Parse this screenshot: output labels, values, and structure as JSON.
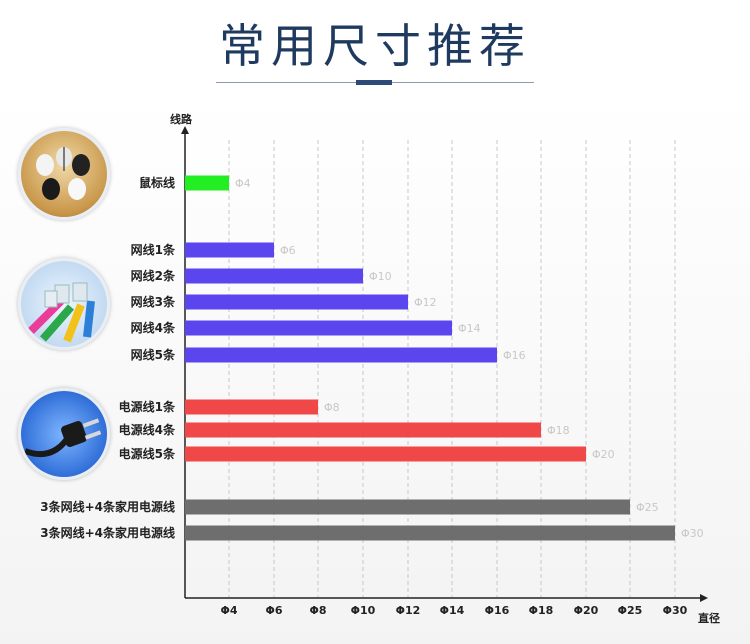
{
  "header": {
    "title": "常用尺寸推荐"
  },
  "chart_data": {
    "type": "bar",
    "orientation": "horizontal",
    "title": "",
    "xlabel": "直径",
    "ylabel": "线路",
    "x_ticks": [
      "Φ4",
      "Φ6",
      "Φ8",
      "Φ10",
      "Φ12",
      "Φ14",
      "Φ16",
      "Φ18",
      "Φ20",
      "Φ25",
      "Φ30"
    ],
    "xlim": [
      "Φ4",
      "Φ30"
    ],
    "grid": "vertical dashed lines at each tick",
    "legend": "none",
    "categories": [
      "鼠标线",
      "网线1条",
      "网线2条",
      "网线3条",
      "网线4条",
      "网线5条",
      "电源线1条",
      "电源线4条",
      "电源线5条",
      "3条网线+4条家用电源线",
      "3条网线+4条家用电源线"
    ],
    "values": [
      4,
      6,
      10,
      12,
      14,
      16,
      8,
      18,
      20,
      25,
      30
    ],
    "value_labels": [
      "Φ4",
      "Φ6",
      "Φ10",
      "Φ12",
      "Φ14",
      "Φ16",
      "Φ8",
      "Φ18",
      "Φ20",
      "Φ25",
      "Φ30"
    ],
    "groups": [
      {
        "icon": "mouse-photo-icon",
        "color": "#22ee22",
        "rows": [
          0
        ]
      },
      {
        "icon": "network-cable-photo-icon",
        "color": "#5b45ee",
        "rows": [
          1,
          2,
          3,
          4,
          5
        ]
      },
      {
        "icon": "power-plug-photo-icon",
        "color": "#f04848",
        "rows": [
          6,
          7,
          8
        ]
      },
      {
        "icon": "",
        "color": "#6e6e6e",
        "rows": [
          9,
          10
        ]
      }
    ]
  }
}
